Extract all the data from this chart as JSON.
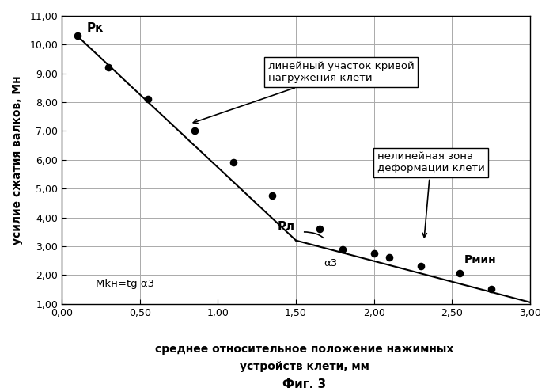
{
  "scatter_points": [
    [
      0.1,
      10.3
    ],
    [
      0.3,
      9.2
    ],
    [
      0.55,
      8.1
    ],
    [
      0.85,
      7.0
    ],
    [
      1.1,
      5.9
    ],
    [
      1.35,
      4.75
    ],
    [
      1.65,
      3.6
    ],
    [
      1.8,
      2.9
    ],
    [
      2.0,
      2.75
    ],
    [
      2.1,
      2.6
    ],
    [
      2.3,
      2.3
    ],
    [
      2.55,
      2.05
    ],
    [
      2.75,
      1.5
    ]
  ],
  "linear_line_x": [
    0.1,
    1.5
  ],
  "linear_line_y": [
    10.3,
    3.2
  ],
  "nonlinear_line_x": [
    1.5,
    3.0
  ],
  "nonlinear_line_y": [
    3.2,
    1.05
  ],
  "xlabel_line1": "среднее относительное положение нажимных",
  "xlabel_line2": "устройств клети, мм",
  "ylabel": "усилие сжатия валков, Мн",
  "fig_label": "Фиг. 3",
  "xlim": [
    0.0,
    3.0
  ],
  "ylim": [
    1.0,
    11.0
  ],
  "xticks": [
    0.0,
    0.5,
    1.0,
    1.5,
    2.0,
    2.5,
    3.0
  ],
  "yticks": [
    1.0,
    2.0,
    3.0,
    4.0,
    5.0,
    6.0,
    7.0,
    8.0,
    9.0,
    10.0,
    11.0
  ],
  "xtick_labels": [
    "0,00",
    "0,50",
    "1,00",
    "1,50",
    "2,00",
    "2,50",
    "3,00"
  ],
  "ytick_labels": [
    "1,00",
    "2,00",
    "3,00",
    "4,00",
    "5,00",
    "6,00",
    "7,00",
    "8,00",
    "9,00",
    "10,00",
    "11,00"
  ],
  "label_linear_text": "линейный участок кривой\nнагружения клети",
  "label_nonlinear_text": "нелинейная зона\nдеформации клети",
  "label_Mkn_text": "Mkн=tg α3",
  "label_alpha_text": "α3",
  "label_Pk": "Pк",
  "label_Pl": "Pл",
  "label_Pmin": "Pмин",
  "point_color": "#000000",
  "line_color": "#000000",
  "bg_color": "#ffffff",
  "grid_color": "#aaaaaa"
}
